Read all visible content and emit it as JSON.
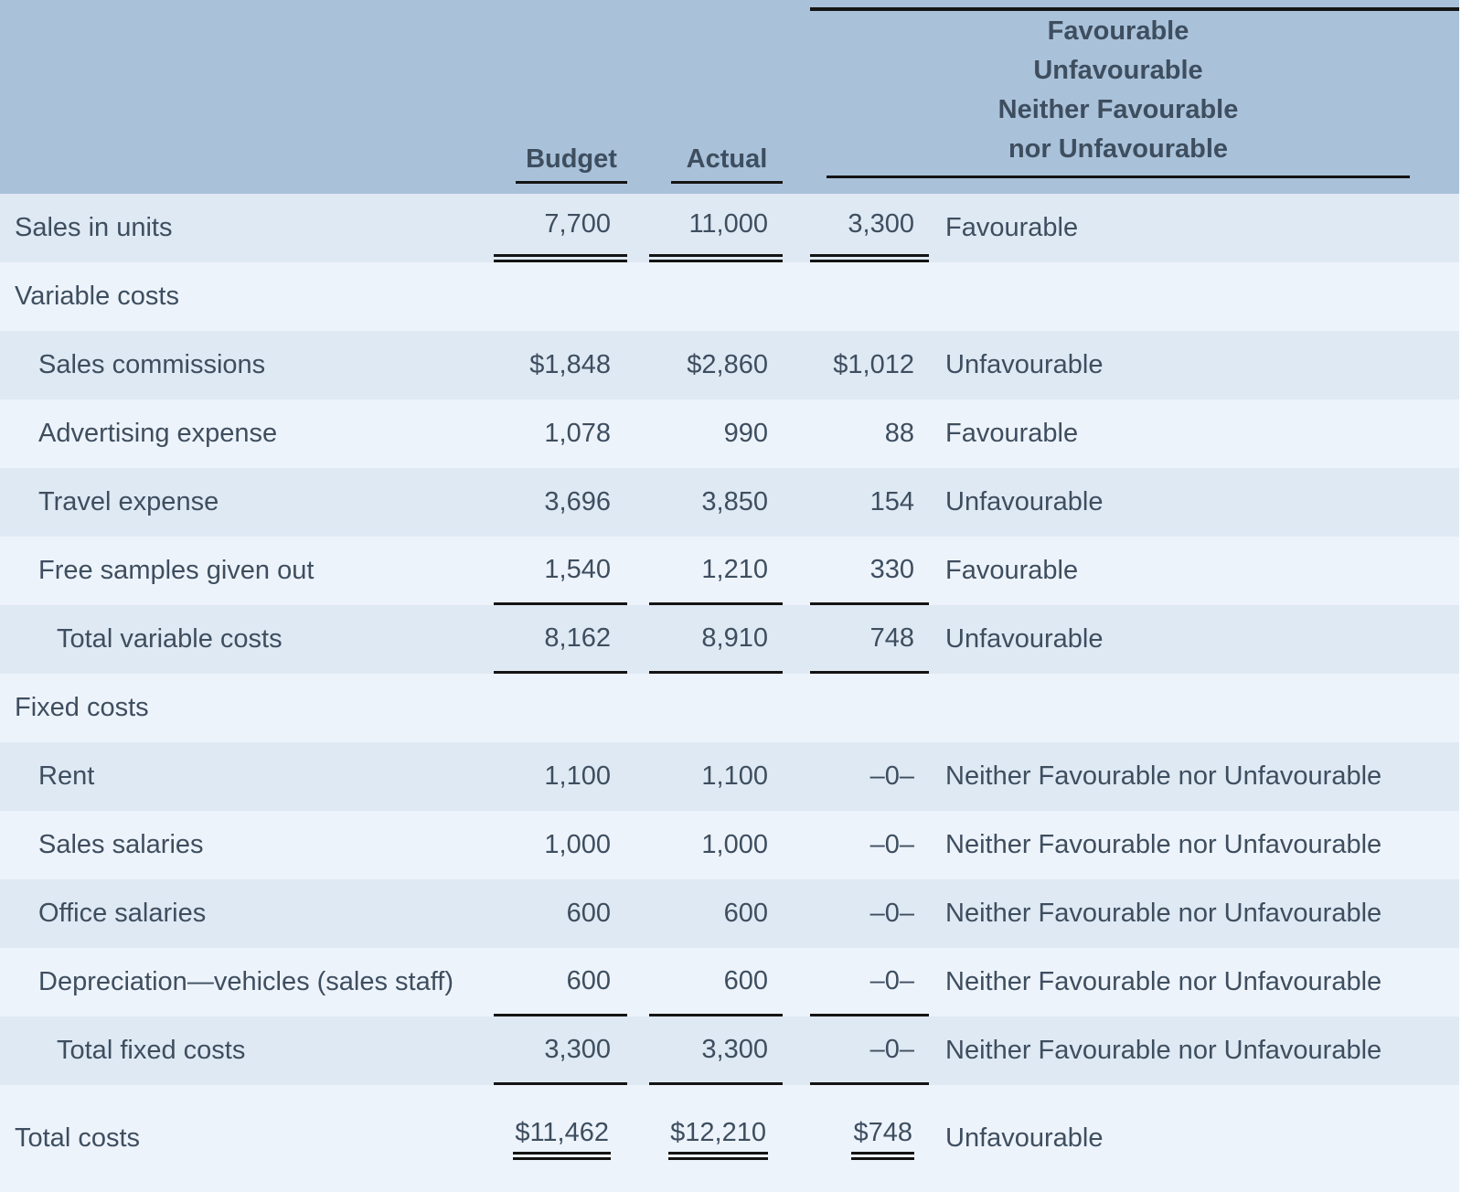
{
  "colors": {
    "header_bg": "#a9c2da",
    "row_dark": "#dfe9f4",
    "row_light": "#edf3fb",
    "text": "#3e4e5f",
    "line": "#141414",
    "page_bg": "#ffffff"
  },
  "header": {
    "budget_label": "Budget",
    "actual_label": "Actual",
    "variance_lines": [
      "Favourable",
      "Unfavourable",
      "Neither Favourable",
      "nor Unfavourable"
    ]
  },
  "rows": [
    {
      "label": "Sales in units",
      "budget": "7,700",
      "actual": "11,000",
      "variance": "3,300",
      "descriptor": "Favourable"
    },
    {
      "label": "Variable costs",
      "budget": "",
      "actual": "",
      "variance": "",
      "descriptor": ""
    },
    {
      "label": "Sales commissions",
      "budget": "$1,848",
      "actual": "$2,860",
      "variance": "$1,012",
      "descriptor": "Unfavourable"
    },
    {
      "label": "Advertising expense",
      "budget": "1,078",
      "actual": "990",
      "variance": "88",
      "descriptor": "Favourable"
    },
    {
      "label": "Travel expense",
      "budget": "3,696",
      "actual": "3,850",
      "variance": "154",
      "descriptor": "Unfavourable"
    },
    {
      "label": "Free samples given out",
      "budget": "1,540",
      "actual": "1,210",
      "variance": "330",
      "descriptor": "Favourable"
    },
    {
      "label": "Total variable costs",
      "budget": "8,162",
      "actual": "8,910",
      "variance": "748",
      "descriptor": "Unfavourable"
    },
    {
      "label": "Fixed costs",
      "budget": "",
      "actual": "",
      "variance": "",
      "descriptor": ""
    },
    {
      "label": "Rent",
      "budget": "1,100",
      "actual": "1,100",
      "variance": "–0–",
      "descriptor": "Neither Favourable nor Unfavourable"
    },
    {
      "label": "Sales salaries",
      "budget": "1,000",
      "actual": "1,000",
      "variance": "–0–",
      "descriptor": "Neither Favourable nor Unfavourable"
    },
    {
      "label": "Office salaries",
      "budget": "600",
      "actual": "600",
      "variance": "–0–",
      "descriptor": "Neither Favourable nor Unfavourable"
    },
    {
      "label": "Depreciation—vehicles (sales staff)",
      "budget": "600",
      "actual": "600",
      "variance": "–0–",
      "descriptor": "Neither Favourable nor Unfavourable"
    },
    {
      "label": "Total fixed costs",
      "budget": "3,300",
      "actual": "3,300",
      "variance": "–0–",
      "descriptor": "Neither Favourable nor Unfavourable"
    },
    {
      "label": "Total costs",
      "budget": "$11,462",
      "actual": "$12,210",
      "variance": "$748",
      "descriptor": "Unfavourable"
    }
  ]
}
